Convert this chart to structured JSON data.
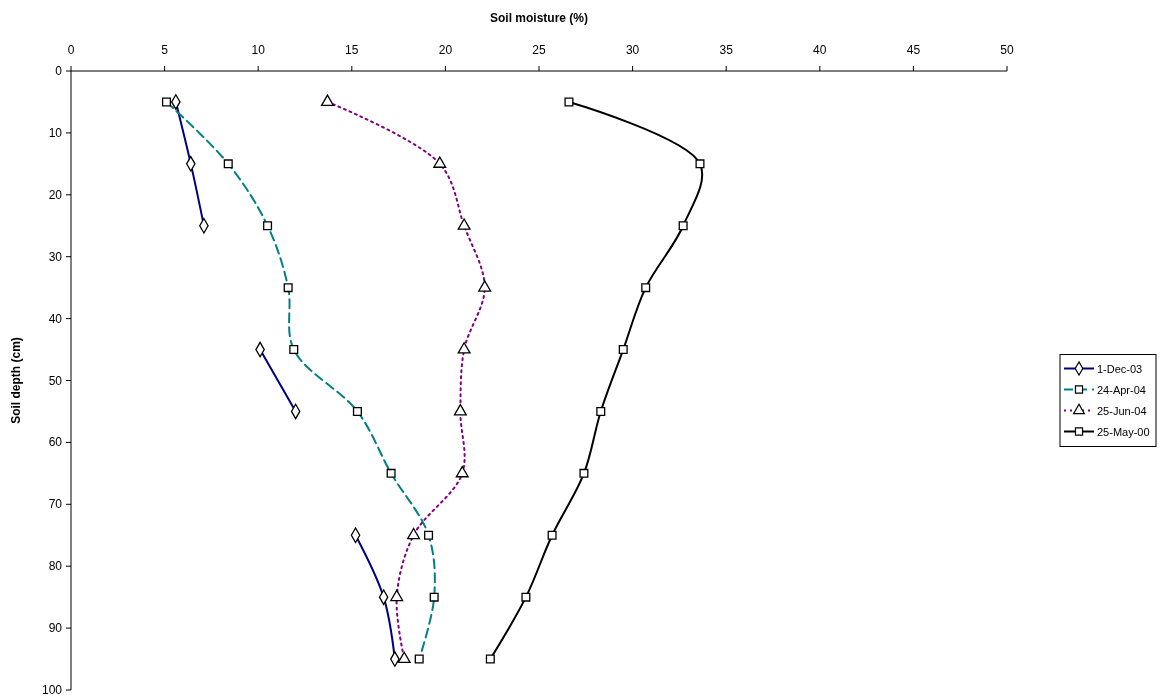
{
  "chart_data": {
    "type": "line",
    "xlabel": "Soil moisture (%)",
    "ylabel": "Soil depth (cm)",
    "xlim": [
      0,
      50
    ],
    "xticks": [
      0,
      5,
      10,
      15,
      20,
      25,
      30,
      35,
      40,
      45,
      50
    ],
    "ylim": [
      100,
      0
    ],
    "yticks": [
      0,
      10,
      20,
      30,
      40,
      50,
      60,
      70,
      80,
      90,
      100
    ],
    "grid": false,
    "legend": "right",
    "series": [
      {
        "name": "1-Dec-03",
        "color": "#000080",
        "marker": "diamond",
        "line_style": "solid",
        "x": [
          5.6,
          6.4,
          7.1,
          null,
          10.1,
          12.0,
          null,
          15.2,
          16.7,
          17.3
        ],
        "values": [
          5,
          15,
          25,
          null,
          45,
          55,
          null,
          75,
          85,
          95
        ]
      },
      {
        "name": "24-Apr-04",
        "color": "#008080",
        "marker": "square",
        "line_style": "dashed",
        "x": [
          5.1,
          8.4,
          10.5,
          11.6,
          11.9,
          15.3,
          17.1,
          19.1,
          19.4,
          18.6
        ],
        "values": [
          5,
          15,
          25,
          35,
          45,
          55,
          65,
          75,
          85,
          95
        ]
      },
      {
        "name": "25-Jun-04",
        "color": "#800080",
        "marker": "triangle",
        "line_style": "dotted",
        "x": [
          13.7,
          19.7,
          21.0,
          22.1,
          21.0,
          20.8,
          20.9,
          18.3,
          17.4,
          17.8
        ],
        "values": [
          5,
          15,
          25,
          35,
          45,
          55,
          65,
          75,
          85,
          95
        ]
      },
      {
        "name": "25-May-00",
        "color": "#000000",
        "marker": "square",
        "line_style": "solid",
        "x": [
          26.6,
          33.6,
          32.7,
          30.7,
          29.5,
          28.3,
          27.4,
          25.7,
          24.3,
          22.4
        ],
        "values": [
          5,
          15,
          25,
          35,
          45,
          55,
          65,
          75,
          85,
          95
        ]
      }
    ]
  }
}
